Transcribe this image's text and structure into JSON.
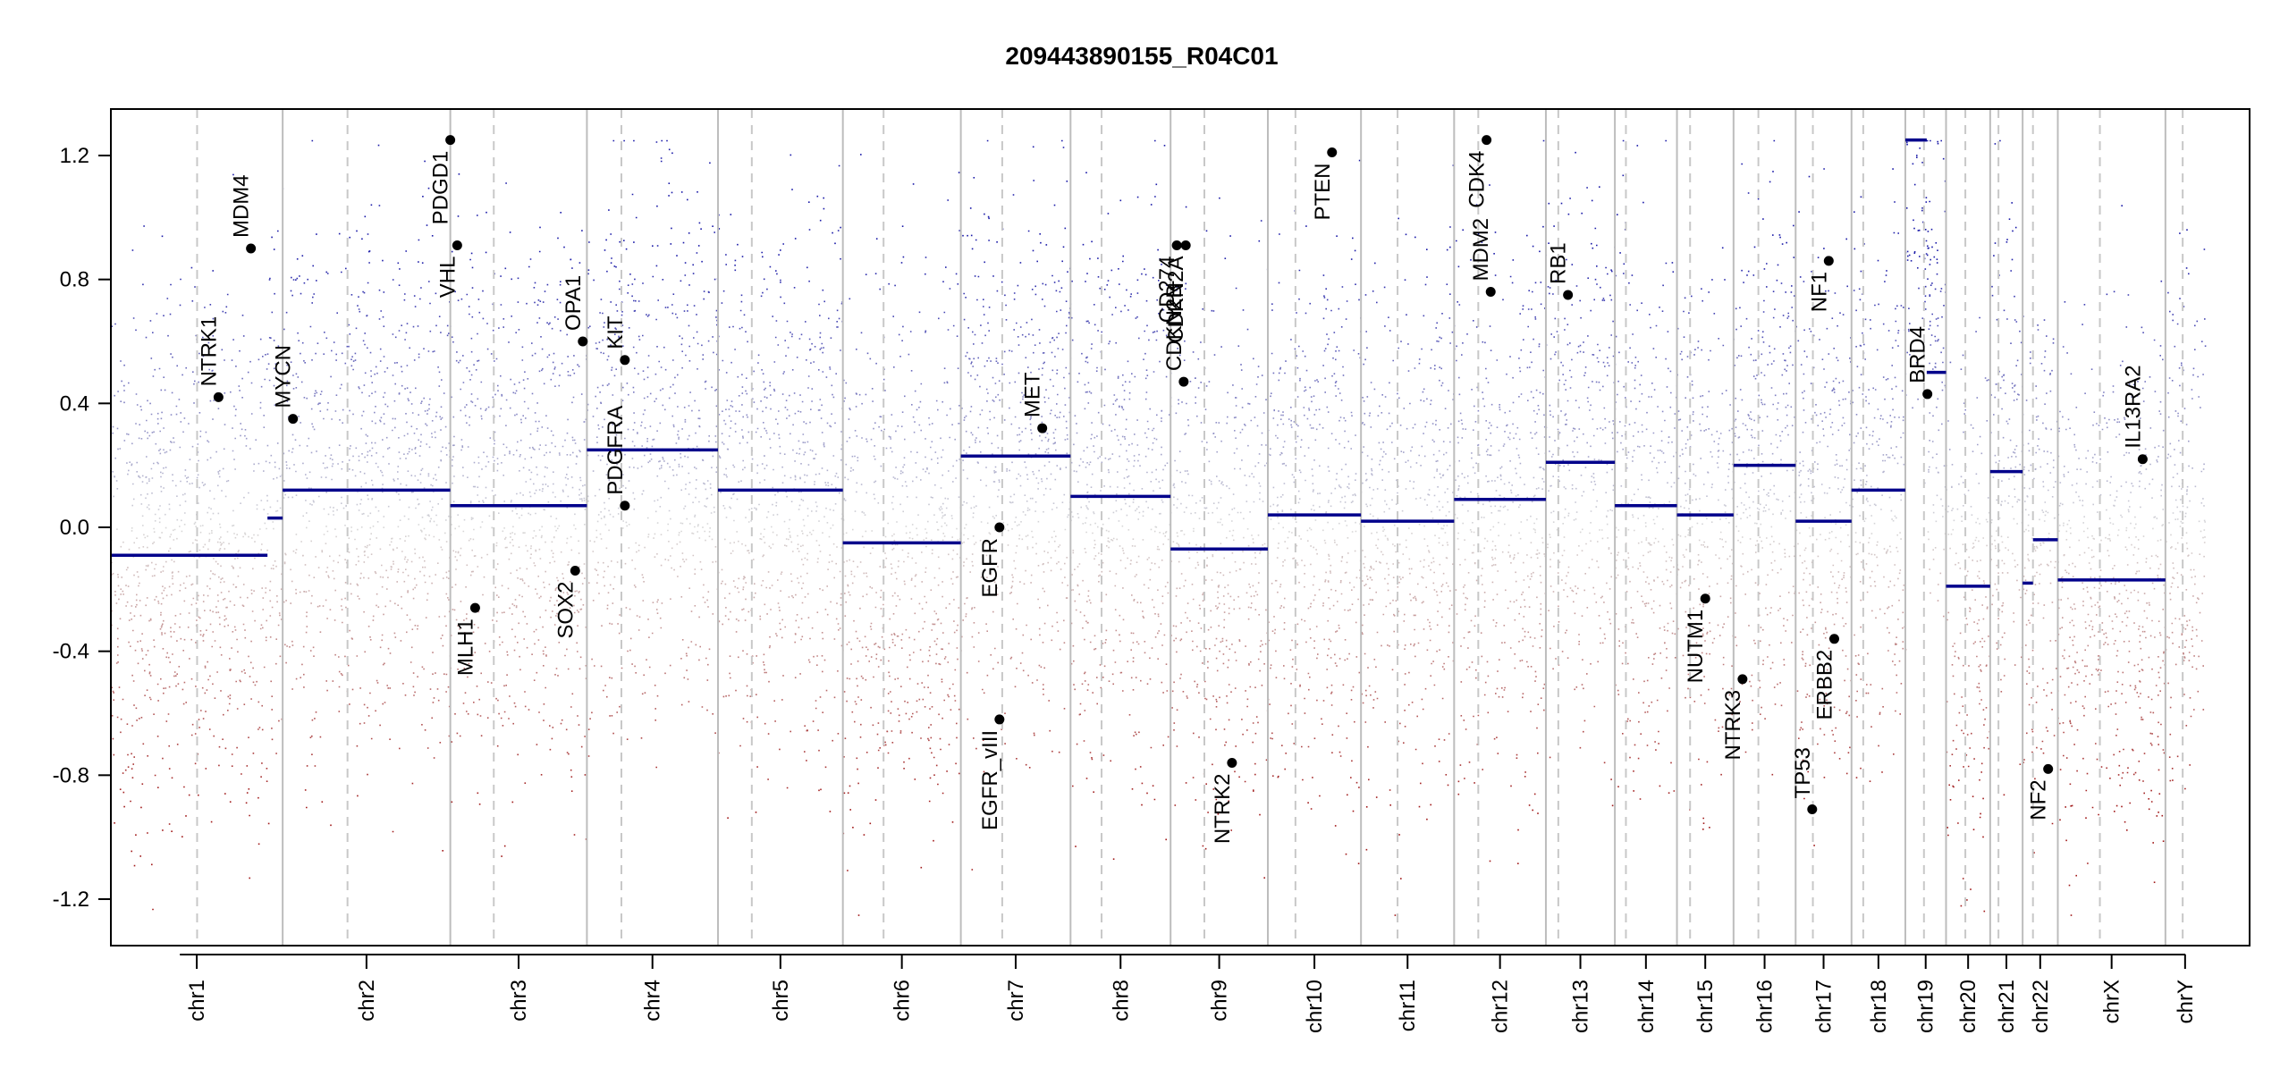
{
  "chart_data": {
    "type": "scatter",
    "title": "209443890155_R04C01",
    "ylim": [
      -1.35,
      1.35
    ],
    "yticks": [
      -1.2,
      -0.8,
      -0.4,
      0.0,
      0.4,
      0.8,
      1.2
    ],
    "ytick_labels": [
      "-1.2",
      "-0.8",
      "-0.4",
      "0.0",
      "0.4",
      "0.8",
      "1.2"
    ],
    "xlim": [
      0,
      3100
    ],
    "clip": 1.25,
    "colors": {
      "gain": "#1a1aa8",
      "loss": "#a11a1a",
      "segment": "#00008b",
      "gene_point": "#000000",
      "chrom_line": "#bdbdbd",
      "centromere_line": "#c8c8c8"
    },
    "chromosomes": [
      {
        "name": "chr1",
        "start": 0,
        "end": 249
      },
      {
        "name": "chr2",
        "start": 249,
        "end": 492
      },
      {
        "name": "chr3",
        "start": 492,
        "end": 690
      },
      {
        "name": "chr4",
        "start": 690,
        "end": 880
      },
      {
        "name": "chr5",
        "start": 880,
        "end": 1061
      },
      {
        "name": "chr6",
        "start": 1061,
        "end": 1232
      },
      {
        "name": "chr7",
        "start": 1232,
        "end": 1391
      },
      {
        "name": "chr8",
        "start": 1391,
        "end": 1536
      },
      {
        "name": "chr9",
        "start": 1536,
        "end": 1677
      },
      {
        "name": "chr10",
        "start": 1677,
        "end": 1812
      },
      {
        "name": "chr11",
        "start": 1812,
        "end": 1947
      },
      {
        "name": "chr12",
        "start": 1947,
        "end": 2080
      },
      {
        "name": "chr13",
        "start": 2080,
        "end": 2180
      },
      {
        "name": "chr14",
        "start": 2180,
        "end": 2270
      },
      {
        "name": "chr15",
        "start": 2270,
        "end": 2352
      },
      {
        "name": "chr16",
        "start": 2352,
        "end": 2442
      },
      {
        "name": "chr17",
        "start": 2442,
        "end": 2523
      },
      {
        "name": "chr18",
        "start": 2523,
        "end": 2601
      },
      {
        "name": "chr19",
        "start": 2601,
        "end": 2660
      },
      {
        "name": "chr20",
        "start": 2660,
        "end": 2724
      },
      {
        "name": "chr21",
        "start": 2724,
        "end": 2771
      },
      {
        "name": "chr22",
        "start": 2771,
        "end": 2822
      },
      {
        "name": "chrX",
        "start": 2822,
        "end": 2978
      },
      {
        "name": "chrY",
        "start": 2978,
        "end": 3035
      }
    ],
    "centromeres": [
      125,
      343,
      555,
      740,
      929,
      1120,
      1292,
      1436,
      1585,
      1717,
      1865,
      1982,
      2098,
      2196,
      2289,
      2388,
      2467,
      2540,
      2628,
      2688,
      2736,
      2786,
      2883,
      3003
    ],
    "segments": [
      {
        "x0": 0,
        "x1": 227,
        "y": -0.09
      },
      {
        "x0": 227,
        "x1": 249,
        "y": 0.03
      },
      {
        "x0": 249,
        "x1": 492,
        "y": 0.12
      },
      {
        "x0": 492,
        "x1": 690,
        "y": 0.07
      },
      {
        "x0": 690,
        "x1": 880,
        "y": 0.25
      },
      {
        "x0": 880,
        "x1": 1061,
        "y": 0.12
      },
      {
        "x0": 1061,
        "x1": 1232,
        "y": -0.05
      },
      {
        "x0": 1232,
        "x1": 1391,
        "y": 0.23
      },
      {
        "x0": 1391,
        "x1": 1536,
        "y": 0.1
      },
      {
        "x0": 1536,
        "x1": 1677,
        "y": -0.07
      },
      {
        "x0": 1677,
        "x1": 1812,
        "y": 0.04
      },
      {
        "x0": 1812,
        "x1": 1947,
        "y": 0.02
      },
      {
        "x0": 1947,
        "x1": 2080,
        "y": 0.09
      },
      {
        "x0": 2080,
        "x1": 2180,
        "y": 0.21
      },
      {
        "x0": 2180,
        "x1": 2270,
        "y": 0.07
      },
      {
        "x0": 2270,
        "x1": 2352,
        "y": 0.04
      },
      {
        "x0": 2352,
        "x1": 2442,
        "y": 0.2
      },
      {
        "x0": 2442,
        "x1": 2523,
        "y": 0.02
      },
      {
        "x0": 2523,
        "x1": 2601,
        "y": 0.12
      },
      {
        "x0": 2601,
        "x1": 2632,
        "y": 1.25
      },
      {
        "x0": 2632,
        "x1": 2660,
        "y": 0.5
      },
      {
        "x0": 2660,
        "x1": 2724,
        "y": -0.19
      },
      {
        "x0": 2724,
        "x1": 2771,
        "y": 0.18
      },
      {
        "x0": 2771,
        "x1": 2786,
        "y": -0.18
      },
      {
        "x0": 2786,
        "x1": 2822,
        "y": -0.04
      },
      {
        "x0": 2822,
        "x1": 2978,
        "y": -0.17
      }
    ],
    "genes": [
      {
        "name": "NTRK1",
        "x": 156,
        "y": 0.42,
        "dir": "up"
      },
      {
        "name": "MDM4",
        "x": 203,
        "y": 0.9,
        "dir": "up"
      },
      {
        "name": "MYCN",
        "x": 264,
        "y": 0.35,
        "dir": "up"
      },
      {
        "name": "PDGD1",
        "x": 492,
        "y": 1.25,
        "dir": "down"
      },
      {
        "name": "VHL",
        "x": 502,
        "y": 0.91,
        "dir": "down"
      },
      {
        "name": "MLH1",
        "x": 528,
        "y": -0.26,
        "dir": "down"
      },
      {
        "name": "SOX2",
        "x": 673,
        "y": -0.14,
        "dir": "down"
      },
      {
        "name": "OPA1",
        "x": 684,
        "y": 0.6,
        "dir": "up"
      },
      {
        "name": "KIT",
        "x": 745,
        "y": 0.54,
        "dir": "up"
      },
      {
        "name": "PDGFRA",
        "x": 745,
        "y": 0.07,
        "dir": "up"
      },
      {
        "name": "EGFR",
        "x": 1288,
        "y": 0.0,
        "dir": "down"
      },
      {
        "name": "EGFR_vIII",
        "x": 1288,
        "y": -0.62,
        "dir": "down"
      },
      {
        "name": "MET",
        "x": 1350,
        "y": 0.32,
        "dir": "up"
      },
      {
        "name": "CD274",
        "x": 1545,
        "y": 0.91,
        "dir": "down"
      },
      {
        "name": "CDKN2A",
        "x": 1558,
        "y": 0.91,
        "dir": "down"
      },
      {
        "name": "CDKN2B",
        "x": 1555,
        "y": 0.47,
        "dir": "up"
      },
      {
        "name": "NTRK2",
        "x": 1625,
        "y": -0.76,
        "dir": "down"
      },
      {
        "name": "PTEN",
        "x": 1770,
        "y": 1.21,
        "dir": "down"
      },
      {
        "name": "CDK4",
        "x": 1994,
        "y": 1.25,
        "dir": "down"
      },
      {
        "name": "MDM2",
        "x": 2000,
        "y": 0.76,
        "dir": "up"
      },
      {
        "name": "RB1",
        "x": 2112,
        "y": 0.75,
        "dir": "up"
      },
      {
        "name": "NUTM1",
        "x": 2311,
        "y": -0.23,
        "dir": "down"
      },
      {
        "name": "NTRK3",
        "x": 2365,
        "y": -0.49,
        "dir": "down"
      },
      {
        "name": "TP53",
        "x": 2466,
        "y": -0.91,
        "dir": "up"
      },
      {
        "name": "NF1",
        "x": 2490,
        "y": 0.86,
        "dir": "down"
      },
      {
        "name": "ERBB2",
        "x": 2498,
        "y": -0.36,
        "dir": "down"
      },
      {
        "name": "BRD4",
        "x": 2633,
        "y": 0.43,
        "dir": "up"
      },
      {
        "name": "NF2",
        "x": 2808,
        "y": -0.78,
        "dir": "down"
      },
      {
        "name": "IL13RA2",
        "x": 2945,
        "y": 0.22,
        "dir": "up"
      }
    ]
  }
}
